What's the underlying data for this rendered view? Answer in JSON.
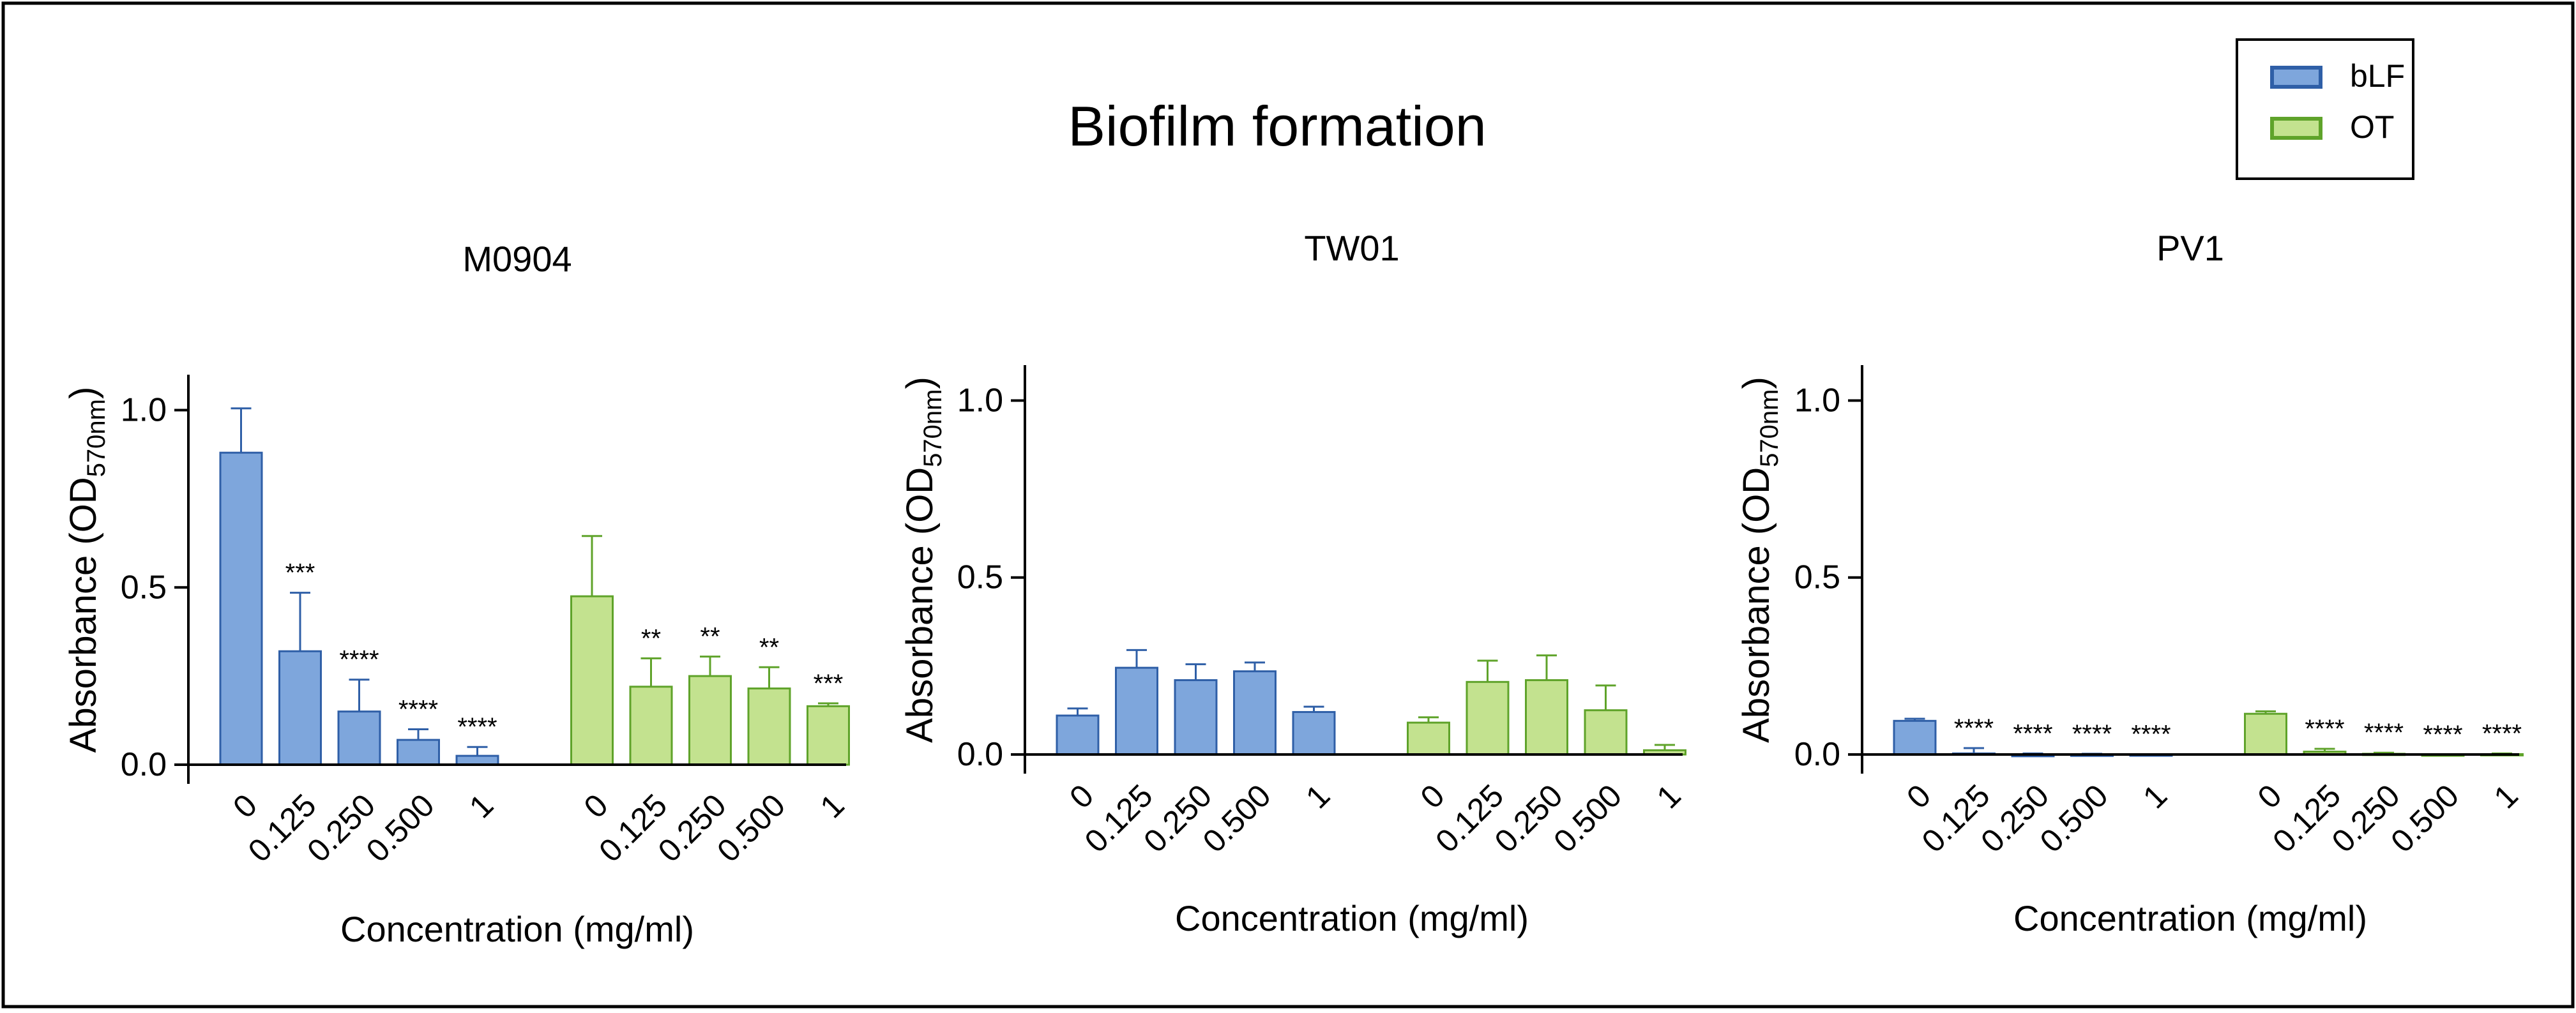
{
  "figure": {
    "title": "Biofilm formation",
    "legend": [
      {
        "label": "bLF",
        "fill": "#7ea6dc",
        "stroke": "#2f5fa7",
        "text_color": "#2f5fa7"
      },
      {
        "label": "OT",
        "fill": "#c3e28f",
        "stroke": "#5fa32a",
        "text_color": "#5fa32a"
      }
    ],
    "legend_position": "top-right"
  },
  "chart_data": [
    {
      "type": "bar",
      "title": "M0904",
      "ylabel_main": "Absorbance (OD",
      "ylabel_sub": "570nm",
      "ylabel_close": ")",
      "xlabel": "Concentration (mg/ml)",
      "ylim": [
        0,
        1.1
      ],
      "yticks": [
        0.0,
        0.5,
        1.0
      ],
      "ytick_labels": [
        "0.0",
        "0.5",
        "1.0"
      ],
      "categories": [
        "0",
        "0.125",
        "0.250",
        "0.500",
        "1"
      ],
      "series": [
        {
          "name": "bLF",
          "values": [
            0.88,
            0.32,
            0.15,
            0.07,
            0.025
          ],
          "errors": [
            0.125,
            0.165,
            0.09,
            0.03,
            0.025
          ],
          "significance": [
            "",
            "***",
            "****",
            "****",
            "****"
          ]
        },
        {
          "name": "OT",
          "values": [
            0.475,
            0.22,
            0.25,
            0.215,
            0.165
          ],
          "errors": [
            0.17,
            0.08,
            0.055,
            0.06,
            0.008
          ],
          "significance": [
            "",
            "**",
            "**",
            "**",
            "***"
          ]
        }
      ]
    },
    {
      "type": "bar",
      "title": "TW01",
      "ylabel_main": "Absorbance (OD",
      "ylabel_sub": "570nm",
      "ylabel_close": ")",
      "xlabel": "Concentration (mg/ml)",
      "ylim": [
        0,
        1.1
      ],
      "yticks": [
        0.0,
        0.5,
        1.0
      ],
      "ytick_labels": [
        "0.0",
        "0.5",
        "1.0"
      ],
      "categories": [
        "0",
        "0.125",
        "0.250",
        "0.500",
        "1"
      ],
      "series": [
        {
          "name": "bLF",
          "values": [
            0.11,
            0.245,
            0.21,
            0.235,
            0.12
          ],
          "errors": [
            0.02,
            0.05,
            0.045,
            0.025,
            0.015
          ],
          "significance": [
            "",
            "",
            "",
            "",
            ""
          ]
        },
        {
          "name": "OT",
          "values": [
            0.09,
            0.205,
            0.21,
            0.125,
            0.012
          ],
          "errors": [
            0.015,
            0.06,
            0.07,
            0.07,
            0.015
          ],
          "significance": [
            "",
            "",
            "",
            "",
            ""
          ]
        }
      ]
    },
    {
      "type": "bar",
      "title": "PV1",
      "ylabel_main": "Absorbance (OD",
      "ylabel_sub": "570nm",
      "ylabel_close": ")",
      "xlabel": "Concentration (mg/ml)",
      "ylim": [
        0,
        1.1
      ],
      "yticks": [
        0.0,
        0.5,
        1.0
      ],
      "ytick_labels": [
        "0.0",
        "0.5",
        "1.0"
      ],
      "categories": [
        "0",
        "0.125",
        "0.250",
        "0.500",
        "1"
      ],
      "series": [
        {
          "name": "bLF",
          "values": [
            0.095,
            0.003,
            -0.005,
            -0.004,
            -0.003
          ],
          "errors": [
            0.006,
            0.015,
            0.008,
            0.006,
            0.004
          ],
          "significance": [
            "",
            "****",
            "****",
            "****",
            "****"
          ]
        },
        {
          "name": "OT",
          "values": [
            0.115,
            0.008,
            0.002,
            -0.003,
            0.001
          ],
          "errors": [
            0.007,
            0.008,
            0.003,
            0.003,
            0.002
          ],
          "significance": [
            "",
            "****",
            "****",
            "****",
            "****"
          ]
        }
      ]
    }
  ]
}
